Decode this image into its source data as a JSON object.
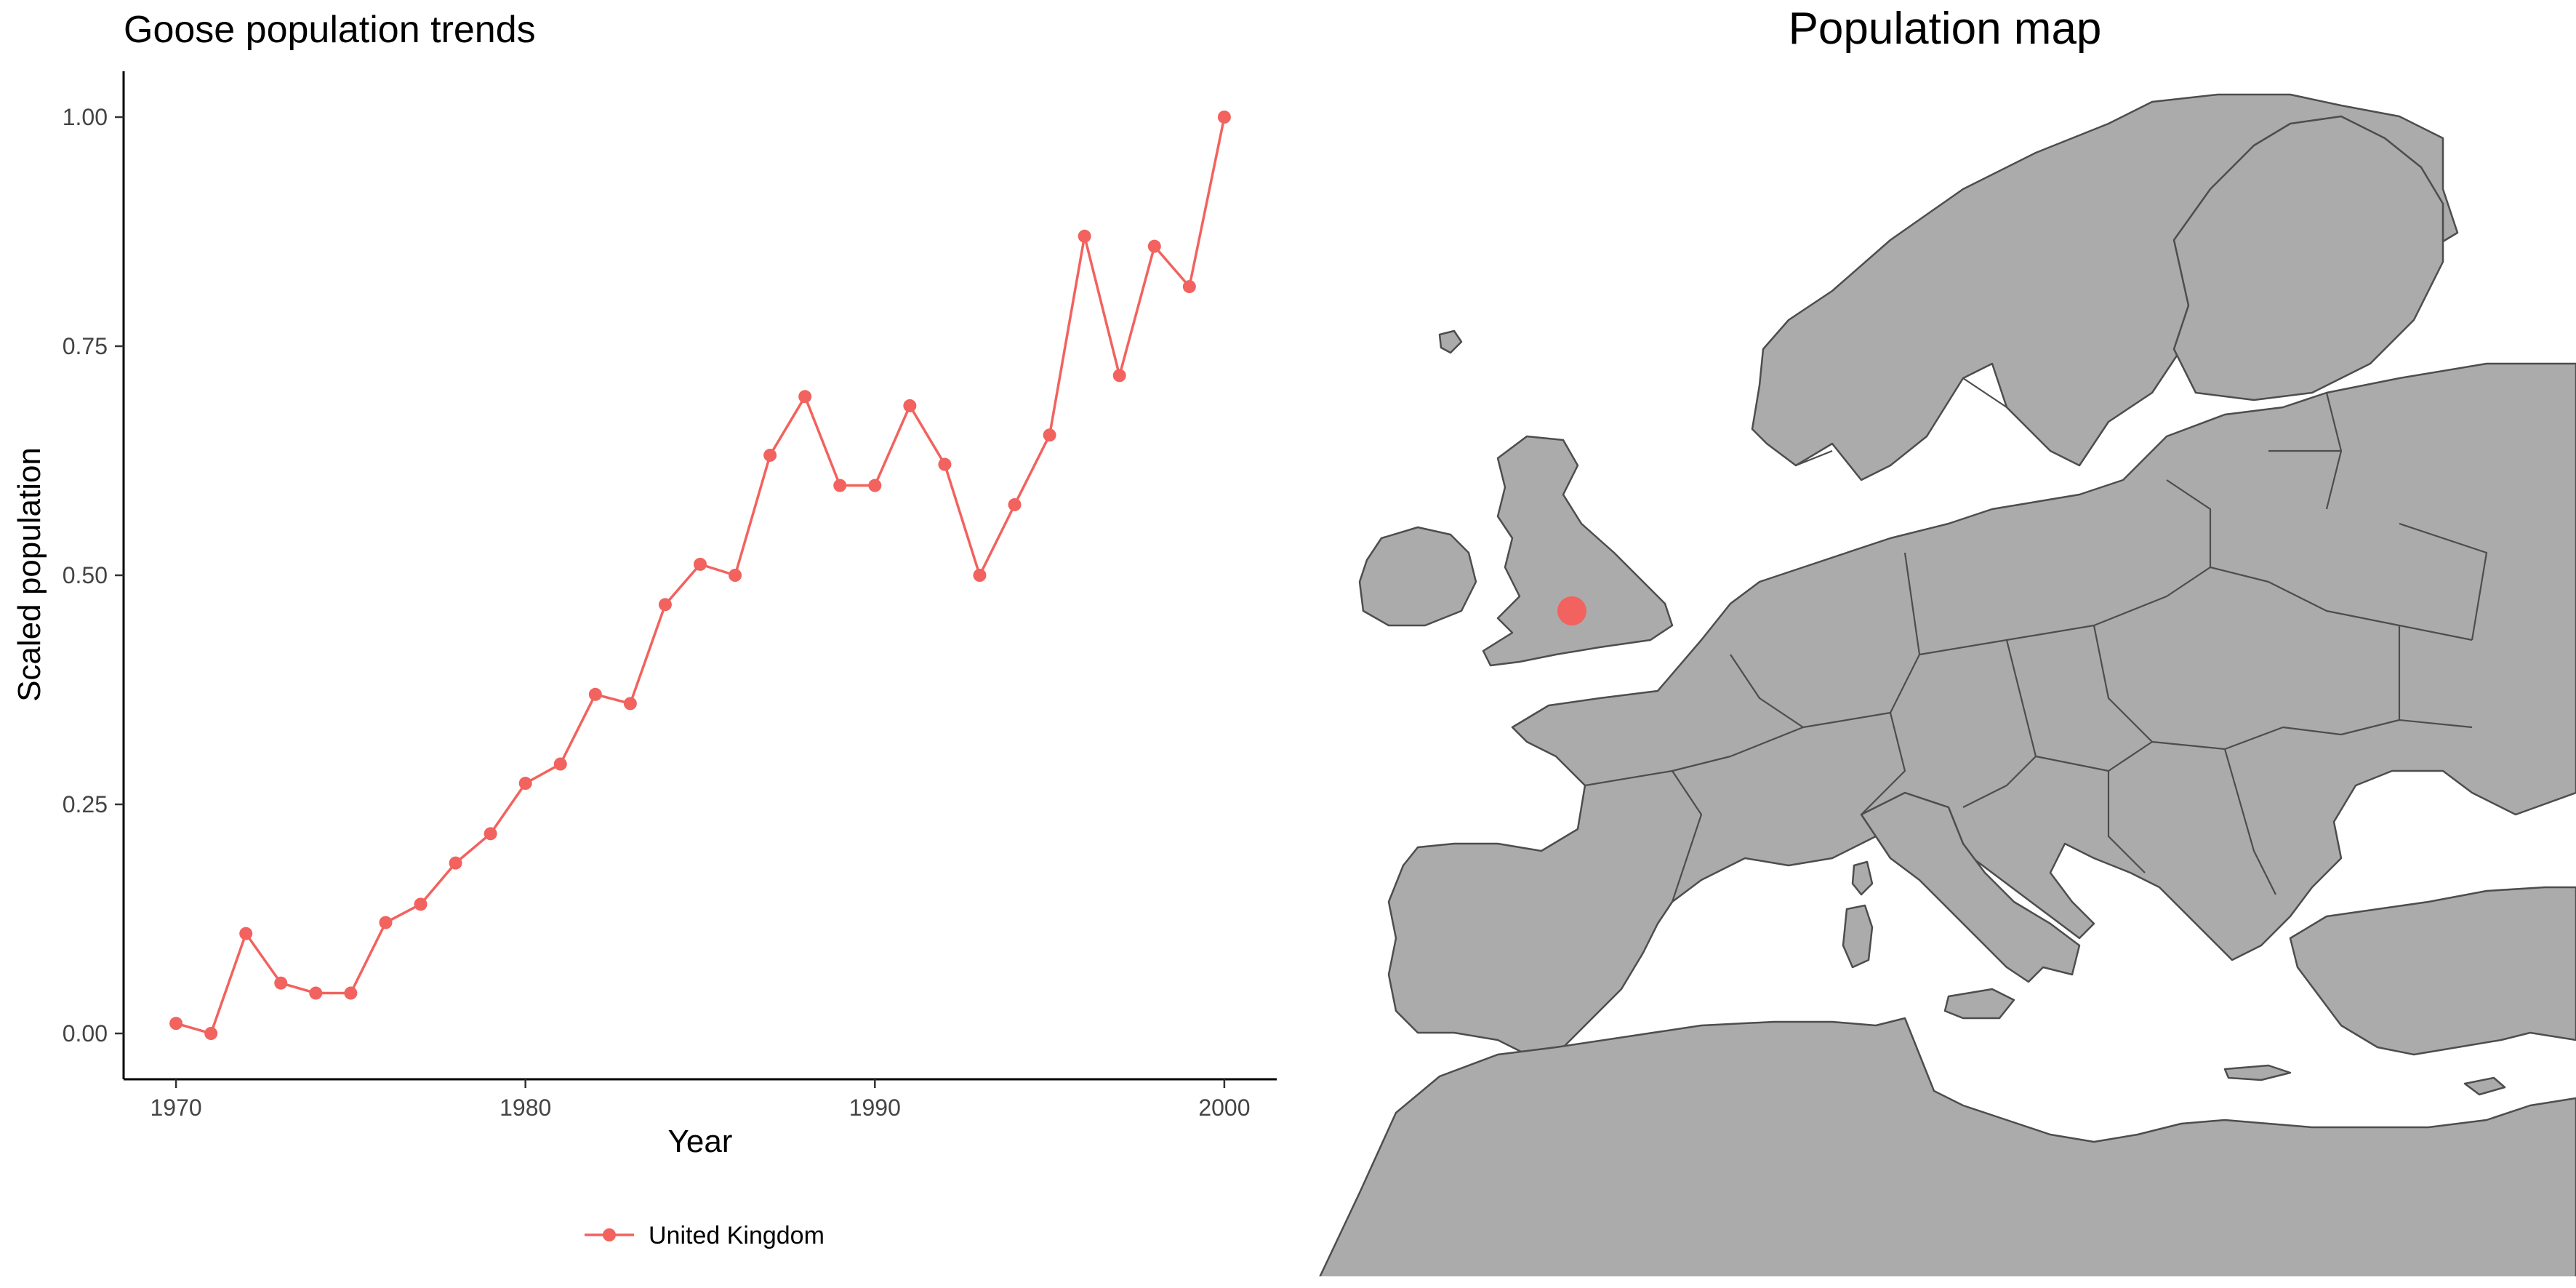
{
  "chart_data": [
    {
      "type": "line",
      "title": "Goose population trends",
      "xlabel": "Year",
      "ylabel": "Scaled population",
      "x_ticks": [
        1970,
        1980,
        1990,
        2000
      ],
      "y_ticks": [
        "0.00",
        "0.25",
        "0.50",
        "0.75",
        "1.00"
      ],
      "xlim": [
        1968.5,
        2001.5
      ],
      "ylim": [
        -0.05,
        1.05
      ],
      "grid": false,
      "legend_position": "bottom",
      "x": [
        1970,
        1971,
        1972,
        1973,
        1974,
        1975,
        1976,
        1977,
        1978,
        1979,
        1980,
        1981,
        1982,
        1983,
        1984,
        1985,
        1986,
        1987,
        1988,
        1989,
        1990,
        1991,
        1992,
        1993,
        1994,
        1995,
        1996,
        1997,
        1998,
        1999,
        2000
      ],
      "series": [
        {
          "name": "United Kingdom",
          "color": "#F2625E",
          "values": [
            0.011,
            0.0,
            0.109,
            0.055,
            0.044,
            0.044,
            0.121,
            0.141,
            0.186,
            0.218,
            0.273,
            0.294,
            0.37,
            0.36,
            0.468,
            0.512,
            0.5,
            0.631,
            0.695,
            0.598,
            0.598,
            0.685,
            0.621,
            0.5,
            0.577,
            0.653,
            0.87,
            0.718,
            0.859,
            0.815,
            1.0
          ]
        }
      ]
    },
    {
      "type": "map",
      "title": "Population map",
      "region": "Europe",
      "land_color": "#ABABAB",
      "border_color": "#4D4D4D",
      "markers": [
        {
          "country": "United Kingdom",
          "color": "#F2625E"
        }
      ]
    }
  ]
}
